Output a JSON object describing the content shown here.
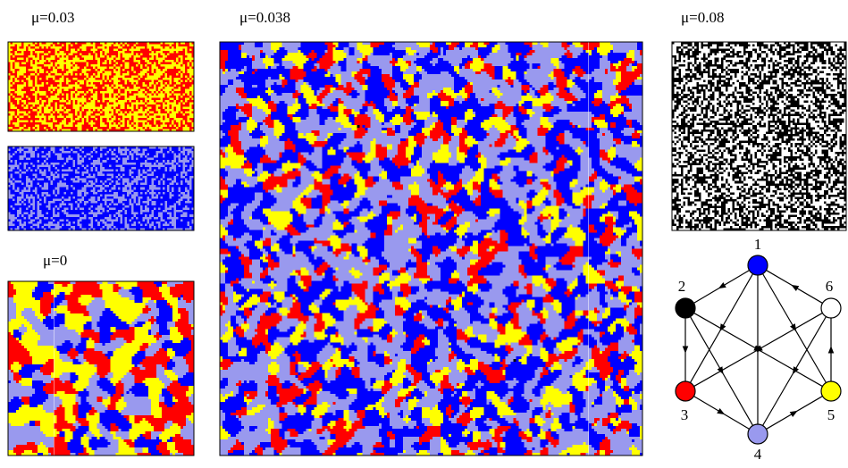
{
  "panels": [
    {
      "label": "μ=0.03"
    },
    {
      "label": "μ=0"
    },
    {
      "label": "μ=0.038"
    },
    {
      "label": "μ=0.08"
    }
  ],
  "graph": {
    "nodes": [
      {
        "label": "1"
      },
      {
        "label": "2"
      },
      {
        "label": "3"
      },
      {
        "label": "4"
      },
      {
        "label": "5"
      },
      {
        "label": "6"
      }
    ]
  }
}
